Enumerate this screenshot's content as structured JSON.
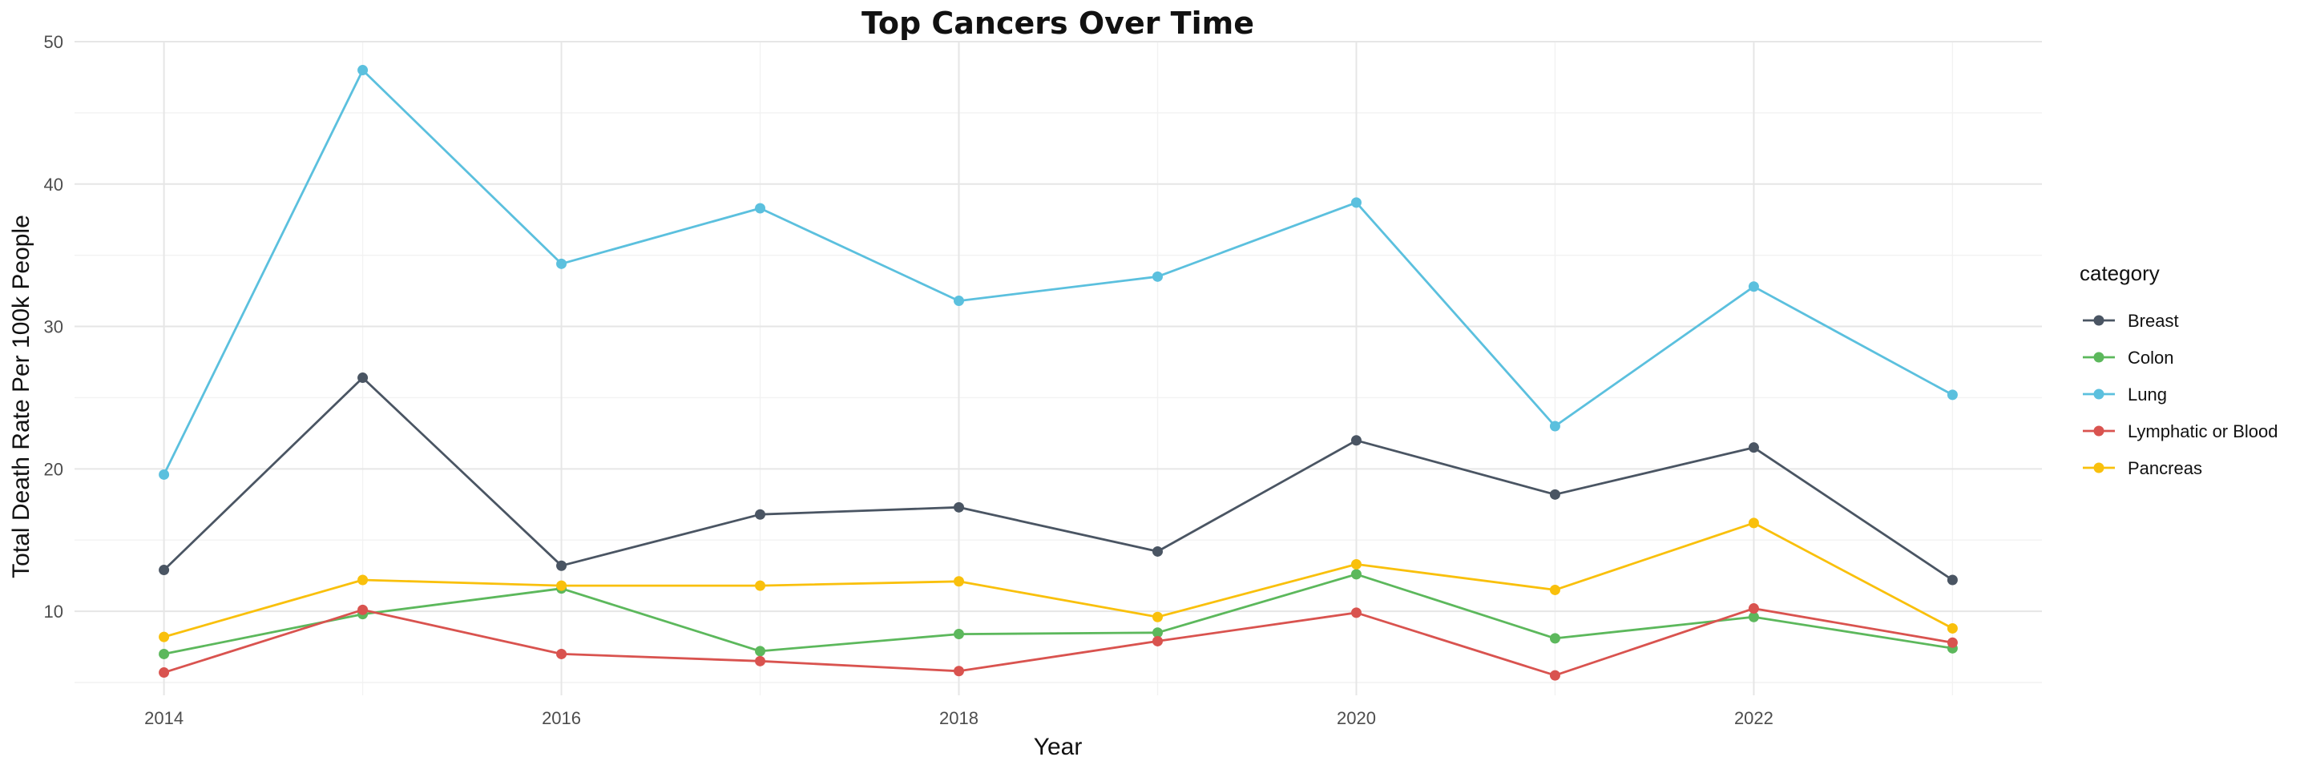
{
  "chart_data": {
    "type": "line",
    "title": "Top Cancers Over Time",
    "xlabel": "Year",
    "ylabel": "Total Death Rate Per 100k People",
    "x": [
      2014,
      2015,
      2016,
      2017,
      2018,
      2019,
      2020,
      2021,
      2022,
      2023
    ],
    "x_ticks": [
      "2014",
      "2016",
      "2018",
      "2020",
      "2022"
    ],
    "y_ticks": [
      "10",
      "20",
      "30",
      "40",
      "50"
    ],
    "xlim": [
      2013.55,
      2023.45
    ],
    "ylim": [
      4.1,
      50
    ],
    "grid": true,
    "legend": {
      "title": "category",
      "placement": "right"
    },
    "series": [
      {
        "name": "Breast",
        "color": "#4a5563",
        "values": [
          12.9,
          26.4,
          13.2,
          16.8,
          17.3,
          14.2,
          22.0,
          18.2,
          21.5,
          12.2
        ]
      },
      {
        "name": "Colon",
        "color": "#5cb85c",
        "values": [
          7.0,
          9.8,
          11.6,
          7.2,
          8.4,
          8.5,
          12.6,
          8.1,
          9.6,
          7.4
        ]
      },
      {
        "name": "Lung",
        "color": "#5bc0de",
        "values": [
          19.6,
          48.0,
          34.4,
          38.3,
          31.8,
          33.5,
          38.7,
          23.0,
          32.8,
          25.2
        ]
      },
      {
        "name": "Lymphatic or Blood",
        "color": "#d9534f",
        "values": [
          5.7,
          10.1,
          7.0,
          6.5,
          5.8,
          7.9,
          9.9,
          5.5,
          10.2,
          7.8
        ]
      },
      {
        "name": "Pancreas",
        "color": "#f9c00c",
        "values": [
          8.2,
          12.2,
          11.8,
          11.8,
          12.1,
          9.6,
          13.3,
          11.5,
          16.2,
          8.8
        ]
      }
    ]
  }
}
